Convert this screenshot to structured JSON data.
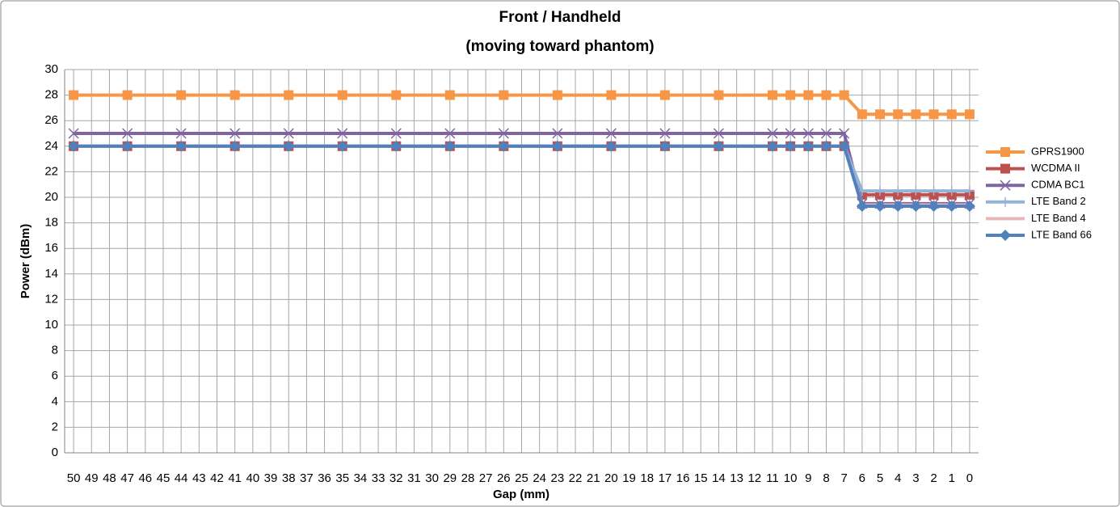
{
  "chart_data": {
    "type": "line",
    "title": "Front / Handheld",
    "subtitle": "(moving toward phantom)",
    "x_label": "Gap (mm)",
    "y_label": "Power (dBm)",
    "x": [
      50,
      47,
      44,
      41,
      38,
      35,
      32,
      29,
      26,
      23,
      20,
      17,
      14,
      11,
      10,
      9,
      8,
      7,
      6,
      5,
      4,
      3,
      2,
      1,
      0
    ],
    "series": [
      {
        "name": "GPRS1900",
        "color": "#f79646",
        "marker": "square",
        "values": [
          28,
          28,
          28,
          28,
          28,
          28,
          28,
          28,
          28,
          28,
          28,
          28,
          28,
          28,
          28,
          28,
          28,
          28,
          26.5,
          26.5,
          26.5,
          26.5,
          26.5,
          26.5,
          26.5
        ]
      },
      {
        "name": "WCDMA II",
        "color": "#c0504d",
        "marker": "square",
        "values": [
          24,
          24,
          24,
          24,
          24,
          24,
          24,
          24,
          24,
          24,
          24,
          24,
          24,
          24,
          24,
          24,
          24,
          24,
          20.2,
          20.2,
          20.2,
          20.2,
          20.2,
          20.2,
          20.2
        ]
      },
      {
        "name": "CDMA BC1",
        "color": "#8064a2",
        "marker": "x",
        "values": [
          25,
          25,
          25,
          25,
          25,
          25,
          25,
          25,
          25,
          25,
          25,
          25,
          25,
          25,
          25,
          25,
          25,
          25,
          19.5,
          19.5,
          19.5,
          19.5,
          19.5,
          19.5,
          19.5
        ]
      },
      {
        "name": "LTE Band 2",
        "color": "#95b3d7",
        "marker": "plus",
        "values": [
          24,
          24,
          24,
          24,
          24,
          24,
          24,
          24,
          24,
          24,
          24,
          24,
          24,
          24,
          24,
          24,
          24,
          24,
          20.5,
          20.5,
          20.5,
          20.5,
          20.5,
          20.5,
          20.5
        ]
      },
      {
        "name": "LTE Band 4",
        "color": "#e6b9b8",
        "marker": "dash",
        "values": [
          24,
          24,
          24,
          24,
          24,
          24,
          24,
          24,
          24,
          24,
          24,
          24,
          24,
          24,
          24,
          24,
          24,
          24,
          19.4,
          19.4,
          19.4,
          19.4,
          19.4,
          19.4,
          19.4
        ]
      },
      {
        "name": "LTE Band 66",
        "color": "#4f81bd",
        "marker": "diamond",
        "values": [
          24,
          24,
          24,
          24,
          24,
          24,
          24,
          24,
          24,
          24,
          24,
          24,
          24,
          24,
          24,
          24,
          24,
          24,
          19.3,
          19.3,
          19.3,
          19.3,
          19.3,
          19.3,
          19.3
        ]
      }
    ],
    "xlim": [
      50.5,
      -0.5
    ],
    "xticks": [
      50,
      49,
      48,
      47,
      46,
      45,
      44,
      43,
      42,
      41,
      40,
      39,
      38,
      37,
      36,
      35,
      34,
      33,
      32,
      31,
      30,
      29,
      28,
      27,
      26,
      25,
      24,
      23,
      22,
      21,
      20,
      19,
      18,
      17,
      16,
      15,
      14,
      13,
      12,
      11,
      10,
      9,
      8,
      7,
      6,
      5,
      4,
      3,
      2,
      1,
      0
    ],
    "ylim": [
      0,
      30
    ],
    "yticks": [
      0,
      2,
      4,
      6,
      8,
      10,
      12,
      14,
      16,
      18,
      20,
      22,
      24,
      26,
      28,
      30
    ],
    "grid": true,
    "legend": "right"
  }
}
